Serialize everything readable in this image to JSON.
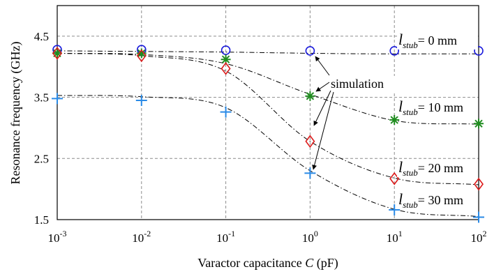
{
  "chart_data": {
    "type": "scatter",
    "xlabel_prefix": "Varactor capacitance ",
    "xlabel_var": "C",
    "xlabel_unit": " (pF)",
    "ylabel": "Resonance frequency (GHz)",
    "xscale": "log",
    "xlim": [
      0.001,
      100
    ],
    "ylim": [
      1.5,
      5.0
    ],
    "grid": true,
    "x_ticks": [
      {
        "base": "10",
        "exp": "-3"
      },
      {
        "base": "10",
        "exp": "-2"
      },
      {
        "base": "10",
        "exp": "-1"
      },
      {
        "base": "10",
        "exp": "0"
      },
      {
        "base": "10",
        "exp": "1"
      },
      {
        "base": "10",
        "exp": "2"
      }
    ],
    "y_ticks": [
      "1.5",
      "2.5",
      "3.5",
      "4.5"
    ],
    "x": [
      0.001,
      0.01,
      0.1,
      1,
      10,
      100
    ],
    "series": [
      {
        "label_var": "l",
        "label_sub": "stub",
        "label_rest": "= 0 mm",
        "marker": "circle",
        "color": "#1a1adc",
        "values": [
          4.28,
          4.28,
          4.27,
          4.26,
          4.26,
          4.26
        ],
        "curve_y": [
          4.26,
          4.25,
          4.24,
          4.22,
          4.21,
          4.21
        ]
      },
      {
        "label_var": "l",
        "label_sub": "stub",
        "label_rest": "= 10 mm",
        "marker": "asterisk",
        "color": "#1f8c1f",
        "values": [
          4.22,
          4.22,
          4.12,
          3.52,
          3.13,
          3.07
        ],
        "curve_y": [
          4.22,
          4.2,
          4.05,
          3.55,
          3.12,
          3.06
        ]
      },
      {
        "label_var": "l",
        "label_sub": "stub",
        "label_rest": "= 20 mm",
        "marker": "diamond",
        "color": "#dc1a1a",
        "values": [
          4.22,
          4.18,
          3.97,
          2.78,
          2.17,
          2.08
        ],
        "curve_y": [
          4.22,
          4.18,
          3.93,
          2.78,
          2.18,
          2.07
        ]
      },
      {
        "label_var": "l",
        "label_sub": "stub",
        "label_rest": "= 30 mm",
        "marker": "plus",
        "color": "#2a8ae6",
        "values": [
          3.48,
          3.45,
          3.26,
          2.26,
          1.66,
          1.54
        ],
        "curve_y": [
          3.53,
          3.51,
          3.33,
          2.3,
          1.67,
          1.55
        ]
      }
    ],
    "annotations": [
      {
        "text": "simulation"
      }
    ]
  }
}
